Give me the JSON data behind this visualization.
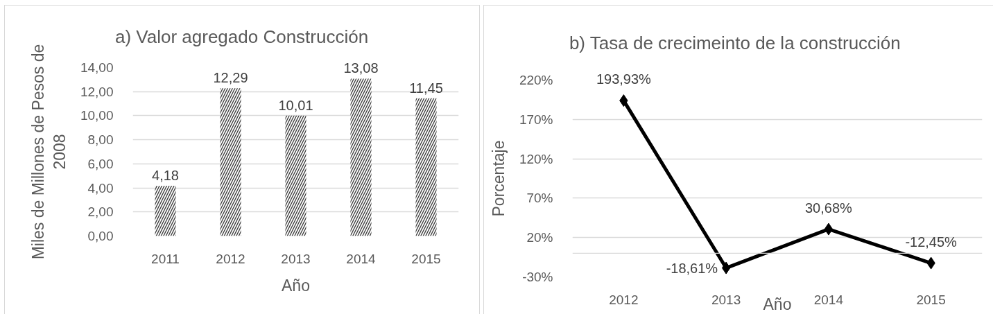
{
  "chart_data": [
    {
      "type": "bar",
      "title": "a) Valor agregado Construcción",
      "xlabel": "Año",
      "ylabel": "Miles de Millones de Pesos de 2008",
      "categories": [
        "2011",
        "2012",
        "2013",
        "2014",
        "2015"
      ],
      "values": [
        4.18,
        12.29,
        10.01,
        13.08,
        11.45
      ],
      "value_labels": [
        "4,18",
        "12,29",
        "10,01",
        "13,08",
        "11,45"
      ],
      "color": "#404040",
      "ylim": [
        0,
        14
      ],
      "yticks": [
        {
          "value": 0,
          "label": "0,00"
        },
        {
          "value": 2,
          "label": "2,00"
        },
        {
          "value": 4,
          "label": "4,00"
        },
        {
          "value": 6,
          "label": "6,00"
        },
        {
          "value": 8,
          "label": "8,00"
        },
        {
          "value": 10,
          "label": "10,00"
        },
        {
          "value": 12,
          "label": "12,00"
        },
        {
          "value": 14,
          "label": "14,00"
        }
      ],
      "grid": "y"
    },
    {
      "type": "line",
      "title": "b) Tasa de crecimeinto de la construcción",
      "xlabel": "Año",
      "ylabel": "Porcentaje",
      "categories": [
        "2012",
        "2013",
        "2014",
        "2015"
      ],
      "values": [
        193.93,
        -18.61,
        30.68,
        -12.45
      ],
      "value_labels": [
        "193,93%",
        "-18,61%",
        "30,68%",
        "-12,45%"
      ],
      "color": "#000000",
      "marker": "diamond",
      "line_style": "solid",
      "ylim": [
        -30,
        220
      ],
      "yticks": [
        {
          "value": -30,
          "label": "-30%"
        },
        {
          "value": 20,
          "label": "20%"
        },
        {
          "value": 70,
          "label": "70%"
        },
        {
          "value": 120,
          "label": "120%"
        },
        {
          "value": 170,
          "label": "170%"
        },
        {
          "value": 220,
          "label": "220%"
        }
      ],
      "grid": "y",
      "ref_lines": [
        {
          "axis": "y",
          "value": 0,
          "color": "#d9d9d9"
        }
      ]
    }
  ]
}
